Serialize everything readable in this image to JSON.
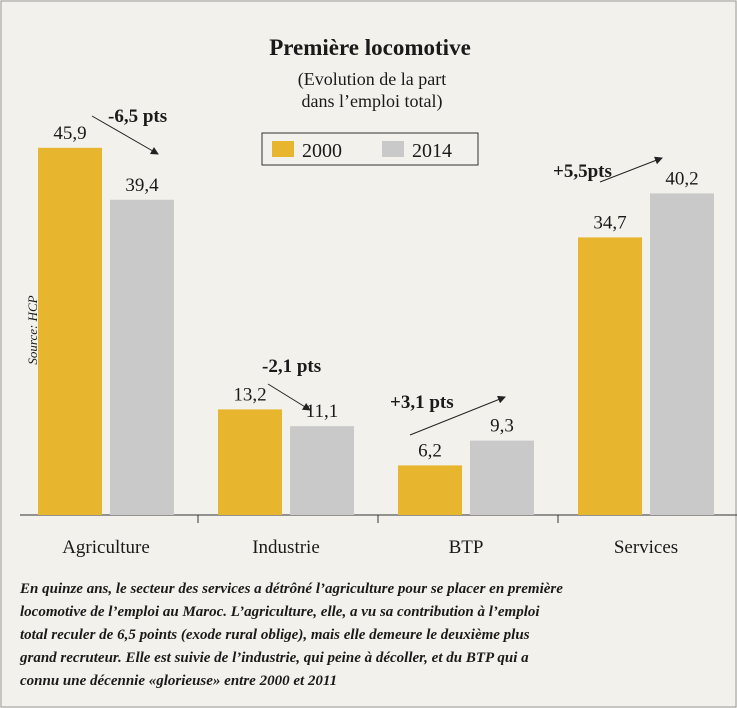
{
  "chart_data": {
    "type": "bar",
    "title": "Première locomotive",
    "subtitle": [
      "(Evolution de la part",
      "dans l’emploi total)"
    ],
    "categories": [
      "Agriculture",
      "Industrie",
      "BTP",
      "Services"
    ],
    "series": [
      {
        "name": "2000",
        "color": "#e8b62e",
        "values": [
          45.9,
          13.2,
          6.2,
          34.7
        ],
        "value_labels": [
          "45,9",
          "13,2",
          "6,2",
          "34,7"
        ]
      },
      {
        "name": "2014",
        "color": "#c9c9c9",
        "values": [
          39.4,
          11.1,
          9.3,
          40.2
        ],
        "value_labels": [
          "39,4",
          "11,1",
          "9,3",
          "40,2"
        ]
      }
    ],
    "annotations": [
      "-6,5 pts",
      "-2,1 pts",
      "+3,1 pts",
      "+5,5pts"
    ],
    "source": "Source: HCP",
    "caption": [
      "En quinze ans, le secteur des services a détrôné l’agriculture pour se placer en première",
      "locomotive de l’emploi au Maroc. L’agriculture, elle, a vu sa contribution à l’emploi",
      "total reculer de 6,5 points (exode rural oblige), mais elle demeure le deuxième plus",
      "grand recruteur. Elle est suivie de l’industrie, qui peine à décoller, et du BTP qui a",
      "connu une décennie «glorieuse» entre 2000 et 2011"
    ]
  }
}
